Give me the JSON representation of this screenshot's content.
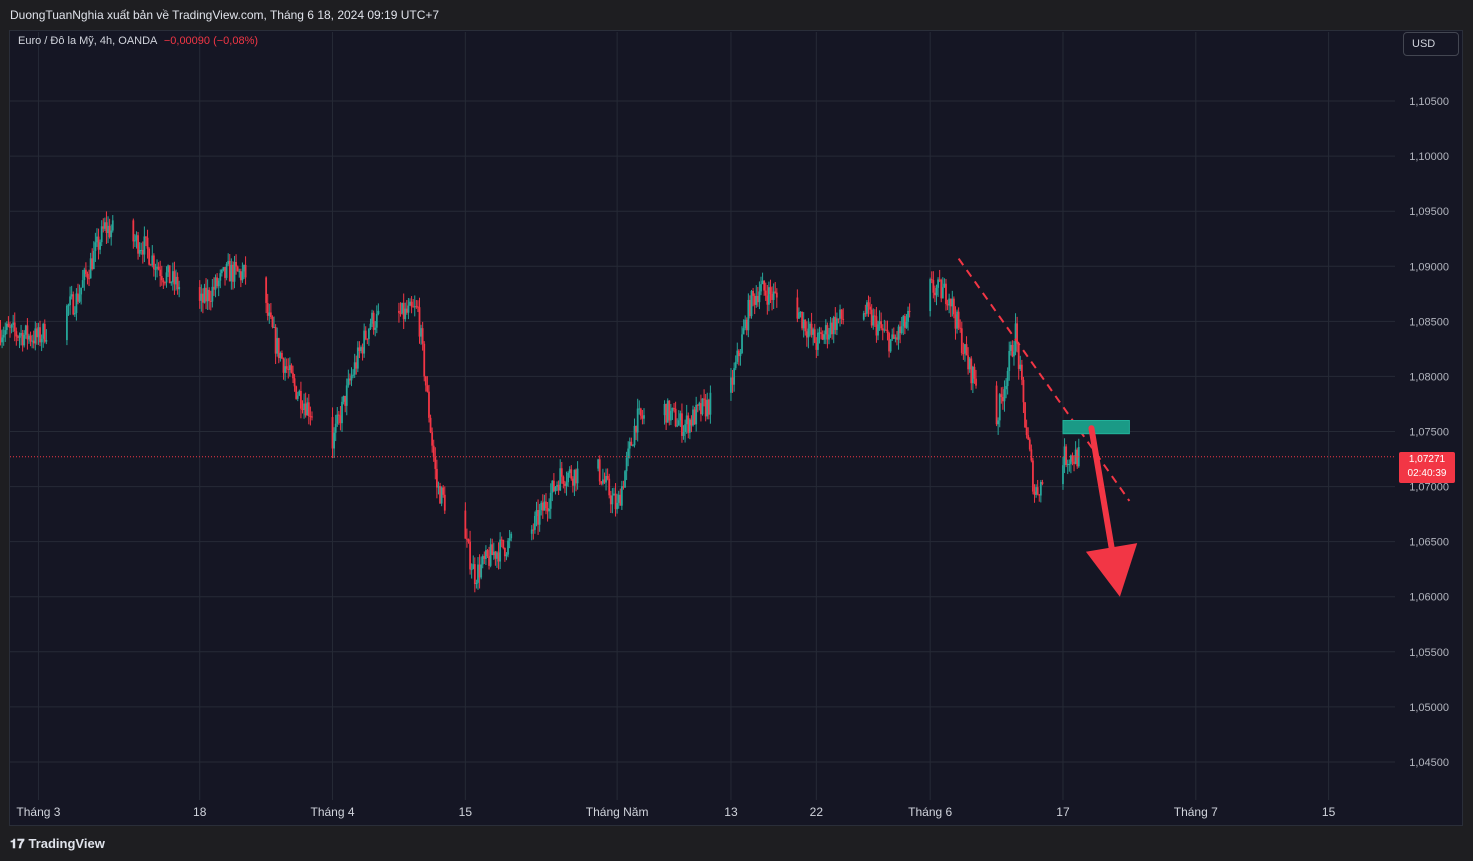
{
  "header": {
    "attribution": "DuongTuanNghia xuất bản về TradingView.com, Tháng 6 18, 2024 09:19 UTC+7"
  },
  "legend": {
    "symbol": "Euro / Đô la Mỹ, 4h, OANDA",
    "change": "−0,00090 (−0,08%)"
  },
  "currency_button": "USD",
  "last_price": {
    "value": "1,07271",
    "countdown": "02:40:39"
  },
  "price_axis": {
    "ticks": [
      "1,10500",
      "1,10000",
      "1,09500",
      "1,09000",
      "1,08500",
      "1,08000",
      "1,07500",
      "1,07000",
      "1,06500",
      "1,06000",
      "1,05500",
      "1,05000",
      "1,04500"
    ]
  },
  "time_axis": {
    "ticks": [
      "Tháng 3",
      "18",
      "Tháng 4",
      "15",
      "Tháng Năm",
      "13",
      "22",
      "Tháng 6",
      "17",
      "Tháng 7",
      "15"
    ]
  },
  "footer": {
    "brand": "TradingView",
    "logo": "tradingview-logo"
  },
  "colors": {
    "up": "#26a69a",
    "down": "#f23645",
    "background": "#151624",
    "grid": "#262a36",
    "zone": "#1a9a86"
  },
  "chart_data": {
    "type": "candlestick",
    "symbol": "EUR/USD",
    "timeframe": "4h",
    "last_price": 1.07271,
    "ylim": [
      1.042,
      1.109
    ],
    "path": [
      [
        "2024-02-26",
        1.0842
      ],
      [
        "2024-03-01",
        1.0835
      ],
      [
        "2024-03-05",
        1.087
      ],
      [
        "2024-03-08",
        1.0935
      ],
      [
        "2024-03-12",
        1.092
      ],
      [
        "2024-03-14",
        1.0895
      ],
      [
        "2024-03-18",
        1.0865
      ],
      [
        "2024-03-21",
        1.0895
      ],
      [
        "2024-03-24",
        1.089
      ],
      [
        "2024-03-26",
        1.083
      ],
      [
        "2024-03-28",
        1.079
      ],
      [
        "2024-04-01",
        1.074
      ],
      [
        "2024-04-03",
        1.08
      ],
      [
        "2024-04-05",
        1.085
      ],
      [
        "2024-04-08",
        1.0855
      ],
      [
        "2024-04-10",
        1.086
      ],
      [
        "2024-04-12",
        1.07
      ],
      [
        "2024-04-15",
        1.065
      ],
      [
        "2024-04-16",
        1.062
      ],
      [
        "2024-04-18",
        1.064
      ],
      [
        "2024-04-22",
        1.066
      ],
      [
        "2024-04-25",
        1.071
      ],
      [
        "2024-04-29",
        1.0715
      ],
      [
        "2024-05-01",
        1.068
      ],
      [
        "2024-05-03",
        1.076
      ],
      [
        "2024-05-06",
        1.077
      ],
      [
        "2024-05-08",
        1.0755
      ],
      [
        "2024-05-10",
        1.077
      ],
      [
        "2024-05-13",
        1.079
      ],
      [
        "2024-05-15",
        1.0865
      ],
      [
        "2024-05-16",
        1.088
      ],
      [
        "2024-05-20",
        1.086
      ],
      [
        "2024-05-22",
        1.083
      ],
      [
        "2024-05-24",
        1.085
      ],
      [
        "2024-05-27",
        1.086
      ],
      [
        "2024-05-30",
        1.083
      ],
      [
        "2024-06-03",
        1.088
      ],
      [
        "2024-06-05",
        1.0875
      ],
      [
        "2024-06-07",
        1.081
      ],
      [
        "2024-06-10",
        1.076
      ],
      [
        "2024-06-12",
        1.084
      ],
      [
        "2024-06-13",
        1.076
      ],
      [
        "2024-06-14",
        1.0695
      ],
      [
        "2024-06-17",
        1.0727
      ]
    ],
    "annotations": {
      "trendline": [
        [
          "2024-06-06",
          1.0907
        ],
        [
          "2024-06-24",
          1.0687
        ]
      ],
      "zone": {
        "x": [
          "2024-06-17",
          "2024-06-24"
        ],
        "y": [
          1.0748,
          1.076
        ]
      },
      "arrow": [
        [
          "2024-06-20",
          1.0753
        ],
        [
          "2024-06-23",
          1.06
        ]
      ]
    }
  }
}
